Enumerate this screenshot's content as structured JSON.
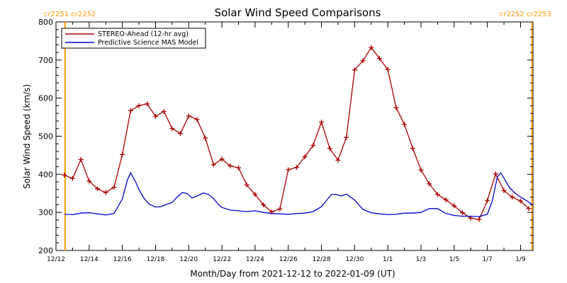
{
  "chart_data": {
    "type": "line",
    "title": "Solar Wind Speed Comparisons",
    "xlabel": "Month/Day from 2021-12-12 to 2022-01-09 (UT)",
    "ylabel": "Solar Wind Speed (km/s)",
    "ylim": [
      200,
      800
    ],
    "xlim": [
      0,
      28.75
    ],
    "yticks": [
      200,
      300,
      400,
      500,
      600,
      700,
      800
    ],
    "xticks": [
      {
        "x": 0,
        "label": "12/12"
      },
      {
        "x": 2,
        "label": "12/14"
      },
      {
        "x": 4,
        "label": "12/16"
      },
      {
        "x": 6,
        "label": "12/18"
      },
      {
        "x": 8,
        "label": "12/20"
      },
      {
        "x": 10,
        "label": "12/22"
      },
      {
        "x": 12,
        "label": "12/24"
      },
      {
        "x": 14,
        "label": "12/26"
      },
      {
        "x": 16,
        "label": "12/28"
      },
      {
        "x": 18,
        "label": "12/30"
      },
      {
        "x": 20,
        "label": "1/1"
      },
      {
        "x": 22,
        "label": "1/3"
      },
      {
        "x": 24,
        "label": "1/5"
      },
      {
        "x": 26,
        "label": "1/7"
      },
      {
        "x": 28,
        "label": "1/9"
      }
    ],
    "rotation_markers": [
      {
        "x": 0.55,
        "label": "cr2251 cr2252",
        "color": "#ff9900"
      },
      {
        "x": 28.7,
        "label": "cr2252 cr2253",
        "color": "#ff9900"
      }
    ],
    "legend_position": "top-left",
    "series": [
      {
        "name": "STEREO-Ahead (12-hr avg)",
        "color": "#aa0000",
        "marker": "plus",
        "x": [
          0.5,
          1.0,
          1.5,
          2.0,
          2.5,
          3.0,
          3.5,
          4.0,
          4.5,
          5.0,
          5.5,
          6.0,
          6.5,
          7.0,
          7.5,
          8.0,
          8.5,
          9.0,
          9.5,
          10.0,
          10.5,
          11.0,
          11.5,
          12.0,
          12.5,
          13.0,
          13.5,
          14.0,
          14.5,
          15.0,
          15.5,
          16.0,
          16.5,
          17.0,
          17.5,
          18.0,
          18.5,
          19.0,
          19.5,
          20.0,
          20.5,
          21.0,
          21.5,
          22.0,
          22.5,
          23.0,
          23.5,
          24.0,
          24.5,
          25.0,
          25.5,
          26.0,
          26.5,
          27.0,
          27.5,
          28.0,
          28.5
        ],
        "values": [
          398,
          389,
          439,
          382,
          362,
          352,
          366,
          452,
          567,
          580,
          585,
          552,
          565,
          520,
          507,
          553,
          544,
          495,
          425,
          440,
          422,
          417,
          372,
          347,
          320,
          301,
          309,
          412,
          418,
          446,
          476,
          537,
          468,
          437,
          497,
          674,
          698,
          733,
          704,
          675,
          575,
          531,
          468,
          411,
          375,
          347,
          333,
          317,
          299,
          285,
          281,
          331,
          401,
          357,
          340,
          330,
          310
        ]
      },
      {
        "name": "Predictive Science MAS Model",
        "color": "#0000cc",
        "marker": "none",
        "x": [
          0.5,
          1.0,
          1.5,
          2.0,
          2.5,
          3.0,
          3.5,
          4.0,
          4.3,
          4.5,
          4.8,
          5.0,
          5.3,
          5.6,
          6.0,
          6.3,
          6.6,
          7.0,
          7.3,
          7.6,
          7.9,
          8.2,
          8.5,
          8.9,
          9.2,
          9.5,
          9.8,
          10.0,
          10.5,
          11.0,
          11.5,
          12.0,
          12.5,
          13.0,
          13.5,
          14.0,
          14.5,
          15.0,
          15.5,
          16.0,
          16.3,
          16.6,
          16.9,
          17.2,
          17.5,
          18.0,
          18.5,
          19.0,
          19.5,
          20.0,
          20.5,
          21.0,
          21.5,
          22.0,
          22.5,
          23.0,
          23.5,
          24.0,
          24.5,
          25.0,
          25.5,
          26.0,
          26.3,
          26.6,
          26.8,
          27.0,
          27.3,
          27.6,
          27.9,
          28.2,
          28.5,
          28.7
        ],
        "values": [
          295,
          294,
          298,
          299,
          296,
          293,
          297,
          335,
          385,
          404,
          380,
          360,
          337,
          322,
          314,
          315,
          320,
          326,
          340,
          352,
          350,
          338,
          343,
          351,
          347,
          336,
          320,
          313,
          306,
          304,
          302,
          304,
          300,
          297,
          296,
          295,
          297,
          298,
          302,
          315,
          331,
          347,
          347,
          343,
          348,
          332,
          308,
          299,
          296,
          294,
          295,
          298,
          298,
          300,
          310,
          310,
          297,
          292,
          290,
          290,
          289,
          295,
          330,
          393,
          404,
          390,
          367,
          353,
          343,
          335,
          327,
          320
        ]
      }
    ],
    "grid": false
  }
}
